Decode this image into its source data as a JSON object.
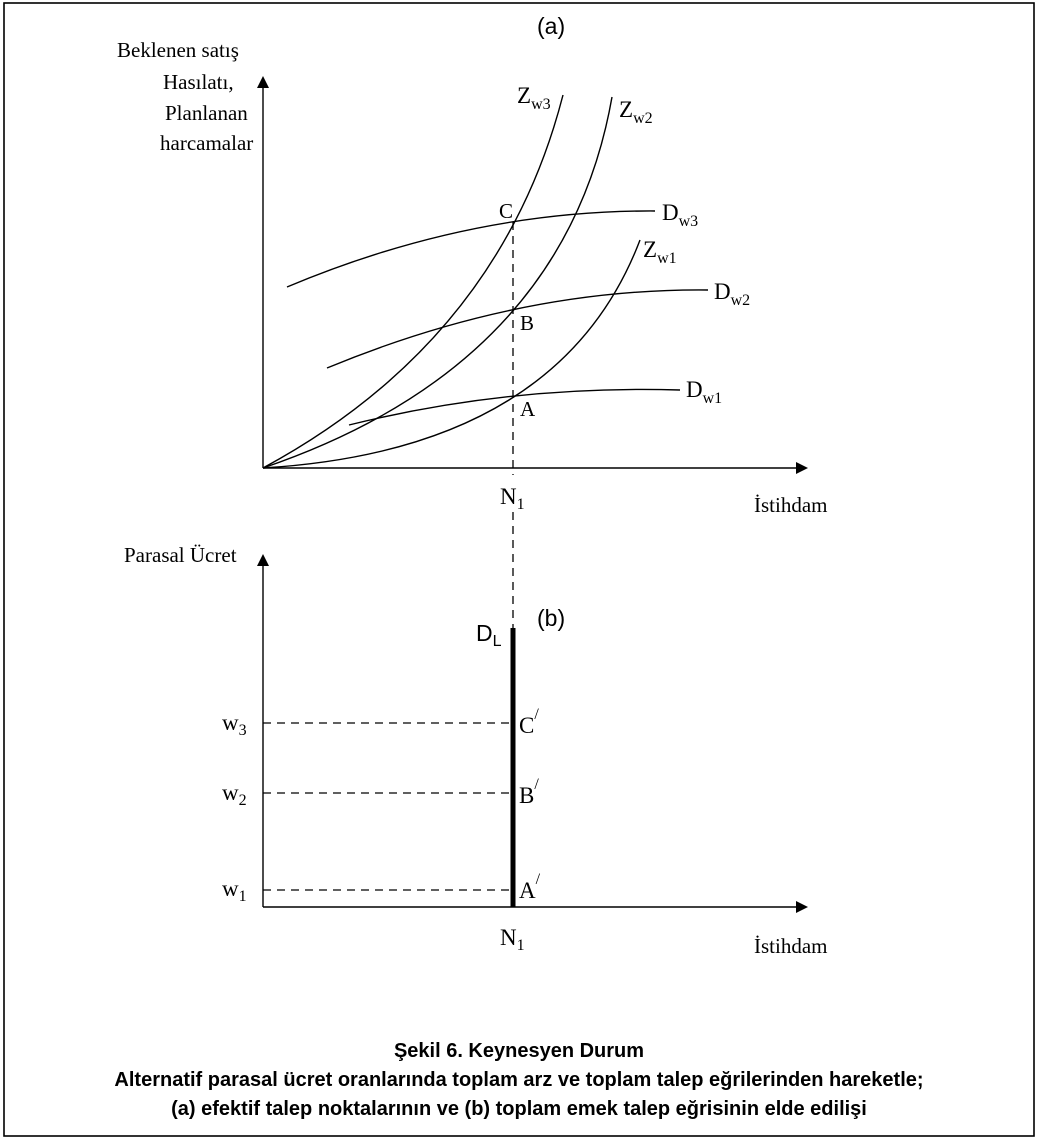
{
  "panel_a": {
    "tag": "(a)",
    "y_axis_label": [
      "Beklenen satış",
      "Hasılatı,",
      "Planlanan",
      "harcamalar"
    ],
    "x_axis_label": "İstihdam",
    "n_label": {
      "main": "N",
      "sub": "1"
    },
    "supply_curves": [
      {
        "main": "Z",
        "sub": "w3"
      },
      {
        "main": "Z",
        "sub": "w2"
      },
      {
        "main": "Z",
        "sub": "w1"
      }
    ],
    "demand_curves": [
      {
        "main": "D",
        "sub": "w3"
      },
      {
        "main": "D",
        "sub": "w2"
      },
      {
        "main": "D",
        "sub": "w1"
      }
    ],
    "points": [
      "C",
      "B",
      "A"
    ]
  },
  "panel_b": {
    "tag": "(b)",
    "y_axis_label": "Parasal Ücret",
    "x_axis_label": "İstihdam",
    "n_label": {
      "main": "N",
      "sub": "1"
    },
    "dl_label": {
      "main": "D",
      "sub": "L"
    },
    "wages": [
      {
        "main": "w",
        "sub": "3",
        "point": "C",
        "prime": "/"
      },
      {
        "main": "w",
        "sub": "2",
        "point": "B",
        "prime": "/"
      },
      {
        "main": "w",
        "sub": "1",
        "point": "A",
        "prime": "/"
      }
    ]
  },
  "caption": {
    "line1": "Şekil 6. Keynesyen Durum",
    "line2": "Alternatif parasal ücret oranlarında toplam arz ve toplam talep eğrilerinden hareketle;",
    "line3": "(a) efektif talep noktalarının ve  (b) toplam  emek talep eğrisinin elde edilişi"
  }
}
